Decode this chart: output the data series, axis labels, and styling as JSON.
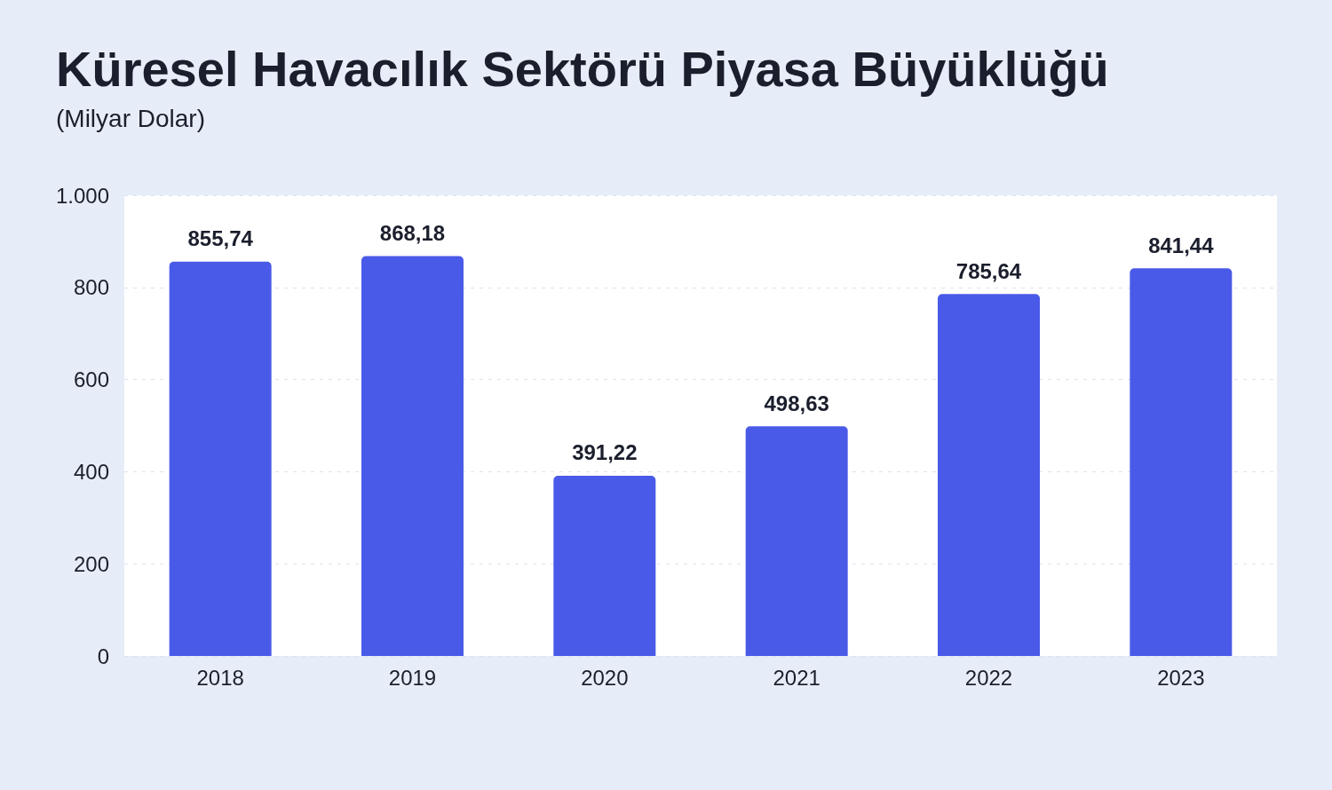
{
  "chart_data": {
    "type": "bar",
    "title": "Küresel Havacılık Sektörü Piyasa Büyüklüğü",
    "subtitle": "(Milyar Dolar)",
    "categories": [
      "2018",
      "2019",
      "2020",
      "2021",
      "2022",
      "2023"
    ],
    "values": [
      855.74,
      868.18,
      391.22,
      498.63,
      785.64,
      841.44
    ],
    "value_labels": [
      "855,74",
      "868,18",
      "391,22",
      "498,63",
      "785,64",
      "841,44"
    ],
    "color": "#4a5ae8",
    "ylim": [
      0,
      1000
    ],
    "yticks": [
      0,
      200,
      400,
      600,
      800,
      {
        "value": 1000,
        "label": "1.000"
      }
    ],
    "grid": "y"
  }
}
